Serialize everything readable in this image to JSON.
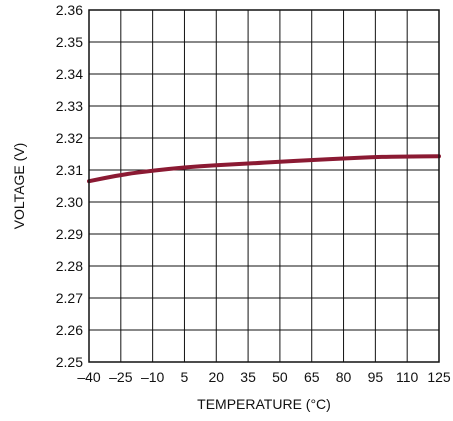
{
  "chart_data": {
    "type": "line",
    "xlabel": "TEMPERATURE (°C)",
    "ylabel": "VOLTAGE (V)",
    "xlim": [
      -40,
      125
    ],
    "ylim": [
      2.25,
      2.36
    ],
    "x_ticks": [
      "–40",
      "–25",
      "–10",
      "5",
      "20",
      "35",
      "50",
      "65",
      "80",
      "95",
      "110",
      "125"
    ],
    "y_ticks": [
      "2.25",
      "2.26",
      "2.27",
      "2.28",
      "2.29",
      "2.30",
      "2.31",
      "2.32",
      "2.33",
      "2.34",
      "2.35",
      "2.36"
    ],
    "grid": true,
    "series": [
      {
        "color": "#8b1a33",
        "x": [
          -40,
          -25,
          -10,
          5,
          20,
          35,
          50,
          65,
          80,
          95,
          110,
          125
        ],
        "y": [
          2.3065,
          2.3085,
          2.3098,
          2.3108,
          2.3115,
          2.312,
          2.3126,
          2.3131,
          2.3136,
          2.3141,
          2.3142,
          2.3143
        ]
      }
    ]
  }
}
